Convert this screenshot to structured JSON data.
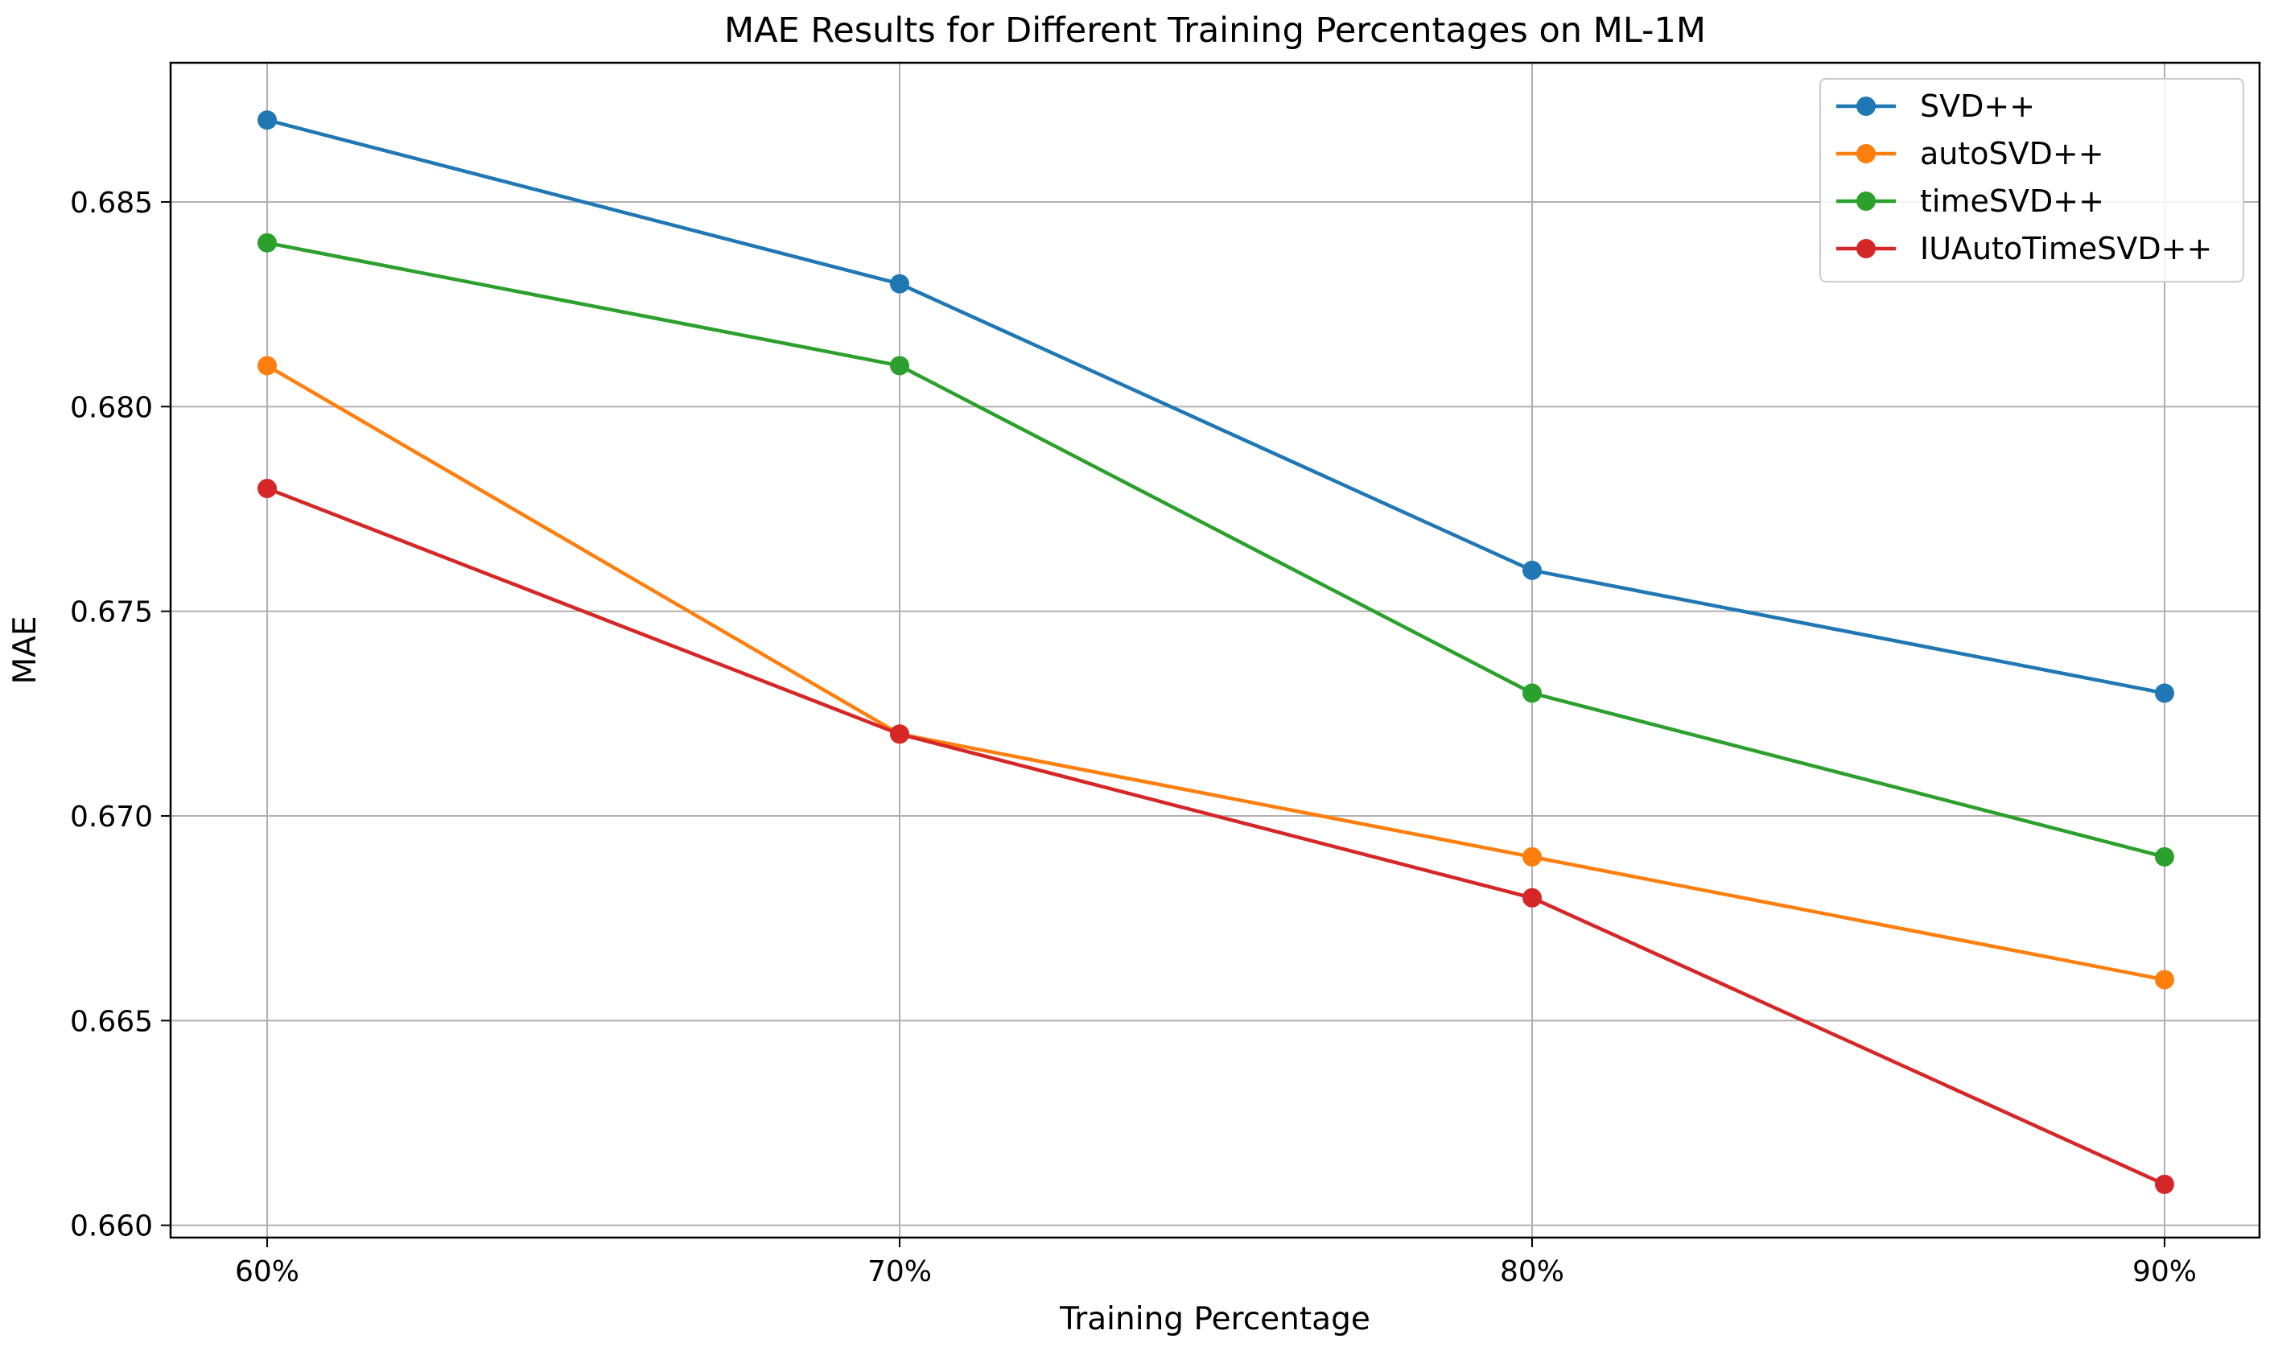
{
  "chart_data": {
    "type": "line",
    "title": "MAE Results for Different Training Percentages on ML-1M",
    "xlabel": "Training Percentage",
    "ylabel": "MAE",
    "categories": [
      "60%",
      "70%",
      "80%",
      "90%"
    ],
    "ylim": [
      0.6597,
      0.6884
    ],
    "yticks": [
      "0.660",
      "0.665",
      "0.670",
      "0.675",
      "0.680",
      "0.685"
    ],
    "ytick_values": [
      0.66,
      0.665,
      0.67,
      0.675,
      0.68,
      0.685
    ],
    "grid": true,
    "legend_position": "top-right",
    "series": [
      {
        "name": "SVD++",
        "color": "#1f77b4",
        "values": [
          0.687,
          0.683,
          0.676,
          0.673
        ]
      },
      {
        "name": "autoSVD++",
        "color": "#ff7f0e",
        "values": [
          0.681,
          0.672,
          0.669,
          0.666
        ]
      },
      {
        "name": "timeSVD++",
        "color": "#2ca02c",
        "values": [
          0.684,
          0.681,
          0.673,
          0.669
        ]
      },
      {
        "name": "IUAutoTimeSVD++",
        "color": "#d62728",
        "values": [
          0.678,
          0.672,
          0.668,
          0.661
        ]
      }
    ]
  }
}
